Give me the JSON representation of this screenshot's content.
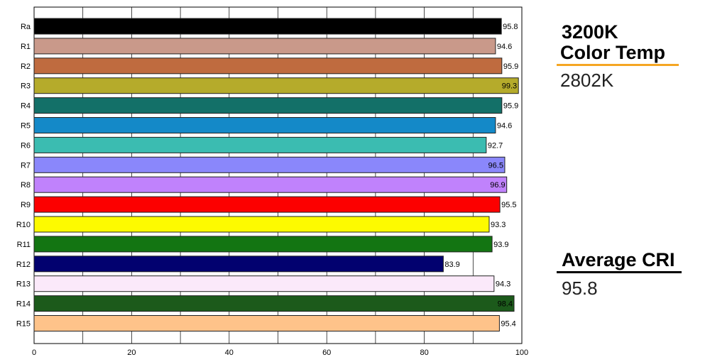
{
  "chart_data": {
    "type": "bar",
    "orientation": "horizontal",
    "categories": [
      "Ra",
      "R1",
      "R2",
      "R3",
      "R4",
      "R5",
      "R6",
      "R7",
      "R8",
      "R9",
      "R10",
      "R11",
      "R12",
      "R13",
      "R14",
      "R15"
    ],
    "values": [
      95.8,
      94.6,
      95.9,
      99.3,
      95.9,
      94.6,
      92.7,
      96.5,
      96.9,
      95.5,
      93.3,
      93.9,
      83.9,
      94.3,
      98.4,
      95.4
    ],
    "value_labels": [
      "95.8",
      "94.6",
      "95.9",
      "99.3",
      "95.9",
      "94.6",
      "92.7",
      "96.5",
      "96.9",
      "95.5",
      "93.3",
      "93.9",
      "83.9",
      "94.3",
      "98.4",
      "95.4"
    ],
    "colors": [
      "#000000",
      "#c9998a",
      "#bf6b3f",
      "#b5ab2b",
      "#137068",
      "#1489c8",
      "#3bbcb1",
      "#8a87fb",
      "#c082fc",
      "#fc0000",
      "#fdfa00",
      "#137512",
      "#02016f",
      "#fbe9fa",
      "#1c5a1b",
      "#fec38a"
    ],
    "xlim": [
      0,
      100
    ],
    "xticks": [
      0,
      20,
      40,
      60,
      80,
      100
    ],
    "grid": true,
    "title": "",
    "xlabel": "",
    "ylabel": ""
  },
  "panel": {
    "color_temp_title_line1": "3200K",
    "color_temp_title_line2": "Color Temp",
    "color_temp_value": "2802K",
    "cri_title": "Average CRI",
    "cri_value": "95.8",
    "accent_color": "#f5a623",
    "rule_color": "#000000"
  }
}
